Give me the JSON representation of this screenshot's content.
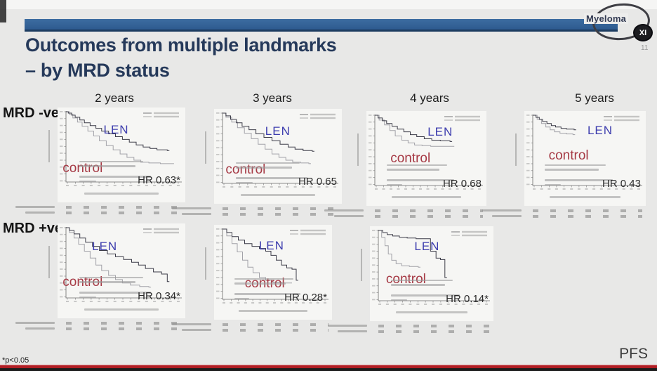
{
  "slide": {
    "title_line1": "Outcomes from multiple landmarks",
    "title_line2": "– by MRD status",
    "slide_number": "11",
    "footnote": "*p<0.05",
    "endpoint": "PFS",
    "logo": {
      "name": "Myeloma",
      "badge": "XI"
    }
  },
  "columns": [
    "2 years",
    "3 years",
    "4 years",
    "5 years"
  ],
  "row_labels": [
    "MRD -ve",
    "MRD +ve"
  ],
  "colors": {
    "header_bar": "#2d5a8f",
    "title_text": "#25395a",
    "bottom_line": "#b01e24",
    "len_label": "#3d3dae",
    "control_label": "#a63a45",
    "len_curve": "#3c3c48",
    "control_curve": "#a2a2a8",
    "background": "#e8e8e7"
  },
  "chart_data": [
    {
      "id": "mrd-neg-2y",
      "type": "line",
      "row": "MRD -ve",
      "landmark": "2 years",
      "hr_label": "HR 0.63*",
      "significant": true,
      "series_labels": {
        "len": "LEN",
        "control": "control"
      },
      "ylim": [
        0,
        100
      ],
      "grid": false,
      "legend_position": "top-right",
      "label_pos": {
        "len": [
          36,
          16
        ],
        "control": [
          4,
          56
        ]
      },
      "series": [
        {
          "name": "LEN",
          "points": [
            [
              0,
              100
            ],
            [
              2,
              98
            ],
            [
              5,
              95
            ],
            [
              8,
              92
            ],
            [
              12,
              88
            ],
            [
              16,
              84
            ],
            [
              21,
              80
            ],
            [
              26,
              76
            ],
            [
              31,
              72
            ],
            [
              37,
              68
            ],
            [
              43,
              64
            ],
            [
              49,
              60
            ],
            [
              55,
              56
            ],
            [
              61,
              52
            ],
            [
              67,
              49
            ],
            [
              73,
              47
            ],
            [
              79,
              45
            ],
            [
              88,
              44
            ]
          ]
        },
        {
          "name": "control",
          "points": [
            [
              0,
              100
            ],
            [
              3,
              96
            ],
            [
              6,
              91
            ],
            [
              10,
              85
            ],
            [
              14,
              79
            ],
            [
              19,
              72
            ],
            [
              24,
              65
            ],
            [
              29,
              58
            ],
            [
              35,
              51
            ],
            [
              41,
              45
            ],
            [
              47,
              39
            ],
            [
              53,
              34
            ],
            [
              59,
              30
            ],
            [
              65,
              27
            ],
            [
              72,
              26
            ],
            [
              82,
              25
            ],
            [
              92,
              25
            ]
          ]
        }
      ]
    },
    {
      "id": "mrd-neg-3y",
      "type": "line",
      "row": "MRD -ve",
      "landmark": "3 years",
      "hr_label": "HR 0.65",
      "significant": false,
      "series_labels": {
        "len": "LEN",
        "control": "control"
      },
      "ylim": [
        0,
        100
      ],
      "grid": false,
      "legend_position": "top-right",
      "label_pos": {
        "len": [
          40,
          16
        ],
        "control": [
          9,
          56
        ]
      },
      "series": [
        {
          "name": "LEN",
          "points": [
            [
              0,
              100
            ],
            [
              3,
              96
            ],
            [
              7,
              91
            ],
            [
              12,
              86
            ],
            [
              17,
              81
            ],
            [
              23,
              76
            ],
            [
              29,
              70
            ],
            [
              36,
              65
            ],
            [
              43,
              60
            ],
            [
              50,
              55
            ],
            [
              57,
              51
            ],
            [
              63,
              48
            ],
            [
              70,
              46
            ],
            [
              78,
              45
            ]
          ]
        },
        {
          "name": "control",
          "points": [
            [
              0,
              100
            ],
            [
              3,
              94
            ],
            [
              8,
              87
            ],
            [
              13,
              79
            ],
            [
              19,
              71
            ],
            [
              25,
              63
            ],
            [
              31,
              55
            ],
            [
              37,
              48
            ],
            [
              43,
              41
            ],
            [
              49,
              36
            ],
            [
              55,
              32
            ],
            [
              61,
              29
            ],
            [
              68,
              28
            ],
            [
              75,
              27
            ]
          ]
        }
      ]
    },
    {
      "id": "mrd-neg-4y",
      "type": "line",
      "row": "MRD -ve",
      "landmark": "4 years",
      "hr_label": "HR 0.68",
      "significant": false,
      "series_labels": {
        "len": "LEN",
        "control": "control"
      },
      "ylim": [
        0,
        100
      ],
      "grid": false,
      "legend_position": "top-right",
      "label_pos": {
        "len": [
          51,
          15
        ],
        "control": [
          20,
          42
        ]
      },
      "series": [
        {
          "name": "LEN",
          "points": [
            [
              0,
              100
            ],
            [
              3,
              96
            ],
            [
              7,
              92
            ],
            [
              11,
              88
            ],
            [
              16,
              84
            ],
            [
              21,
              80
            ],
            [
              27,
              76
            ],
            [
              33,
              72
            ],
            [
              39,
              69
            ],
            [
              46,
              66
            ],
            [
              53,
              64
            ],
            [
              61,
              63
            ],
            [
              70,
              62
            ]
          ]
        },
        {
          "name": "control",
          "points": [
            [
              0,
              100
            ],
            [
              4,
              93
            ],
            [
              9,
              86
            ],
            [
              14,
              78
            ],
            [
              19,
              70
            ],
            [
              25,
              64
            ],
            [
              31,
              60
            ],
            [
              37,
              57
            ],
            [
              44,
              56
            ],
            [
              52,
              55
            ],
            [
              62,
              55
            ],
            [
              72,
              55
            ]
          ]
        }
      ]
    },
    {
      "id": "mrd-neg-5y",
      "type": "line",
      "row": "MRD -ve",
      "landmark": "5 years",
      "hr_label": "HR 0.43",
      "significant": false,
      "series_labels": {
        "len": "LEN",
        "control": "control"
      },
      "ylim": [
        0,
        100
      ],
      "grid": false,
      "legend_position": "top-right",
      "label_pos": {
        "len": [
          52,
          13
        ],
        "control": [
          20,
          39
        ]
      },
      "series": [
        {
          "name": "LEN",
          "points": [
            [
              0,
              100
            ],
            [
              3,
              97
            ],
            [
              6,
              94
            ],
            [
              9,
              91
            ],
            [
              13,
              88
            ],
            [
              17,
              85
            ],
            [
              21,
              83
            ],
            [
              26,
              81
            ],
            [
              31,
              80
            ],
            [
              38,
              79
            ]
          ]
        },
        {
          "name": "control",
          "points": [
            [
              0,
              100
            ],
            [
              4,
              94
            ],
            [
              8,
              88
            ],
            [
              12,
              83
            ],
            [
              16,
              79
            ],
            [
              20,
              76
            ],
            [
              25,
              74
            ],
            [
              31,
              73
            ],
            [
              37,
              72
            ]
          ]
        }
      ]
    },
    {
      "id": "mrd-pos-2y",
      "type": "line",
      "row": "MRD +ve",
      "landmark": "2 years",
      "hr_label": "HR 0.34*",
      "significant": true,
      "series_labels": {
        "len": "LEN",
        "control": "control"
      },
      "ylim": [
        0,
        100
      ],
      "grid": false,
      "legend_position": "top-right",
      "label_pos": {
        "len": [
          27,
          17
        ],
        "control": [
          4,
          54
        ]
      },
      "series": [
        {
          "name": "LEN",
          "points": [
            [
              0,
              100
            ],
            [
              3,
              96
            ],
            [
              7,
              91
            ],
            [
              12,
              85
            ],
            [
              17,
              79
            ],
            [
              23,
              73
            ],
            [
              29,
              67
            ],
            [
              36,
              62
            ],
            [
              43,
              58
            ],
            [
              50,
              54
            ],
            [
              57,
              50
            ],
            [
              63,
              46
            ],
            [
              69,
              41
            ],
            [
              76,
              36
            ],
            [
              83,
              33
            ],
            [
              88,
              22
            ]
          ]
        },
        {
          "name": "control",
          "points": [
            [
              0,
              100
            ],
            [
              3,
              93
            ],
            [
              7,
              85
            ],
            [
              11,
              76
            ],
            [
              16,
              66
            ],
            [
              21,
              56
            ],
            [
              26,
              46
            ],
            [
              31,
              38
            ],
            [
              37,
              31
            ],
            [
              43,
              25
            ],
            [
              49,
              20
            ],
            [
              56,
              17
            ],
            [
              64,
              15
            ],
            [
              72,
              14
            ]
          ]
        }
      ]
    },
    {
      "id": "mrd-pos-3y",
      "type": "line",
      "row": "MRD +ve",
      "landmark": "3 years",
      "hr_label": "HR 0.28*",
      "significant": true,
      "series_labels": {
        "len": "LEN",
        "control": "control"
      },
      "ylim": [
        0,
        100
      ],
      "grid": false,
      "legend_position": "top-right",
      "label_pos": {
        "len": [
          38,
          15
        ],
        "control": [
          26,
          54
        ]
      },
      "series": [
        {
          "name": "LEN",
          "points": [
            [
              0,
              100
            ],
            [
              4,
              95
            ],
            [
              9,
              89
            ],
            [
              15,
              84
            ],
            [
              21,
              79
            ],
            [
              28,
              75
            ],
            [
              35,
              72
            ],
            [
              41,
              68
            ],
            [
              46,
              62
            ],
            [
              51,
              55
            ],
            [
              56,
              48
            ],
            [
              61,
              44
            ],
            [
              66,
              42
            ],
            [
              70,
              26
            ]
          ]
        },
        {
          "name": "control",
          "points": [
            [
              0,
              100
            ],
            [
              4,
              90
            ],
            [
              9,
              79
            ],
            [
              14,
              67
            ],
            [
              19,
              55
            ],
            [
              24,
              45
            ],
            [
              29,
              37
            ],
            [
              35,
              30
            ],
            [
              41,
              26
            ],
            [
              48,
              23
            ],
            [
              56,
              22
            ],
            [
              64,
              22
            ]
          ]
        }
      ]
    },
    {
      "id": "mrd-pos-4y",
      "type": "line",
      "row": "MRD +ve",
      "landmark": "4 years",
      "hr_label": "HR 0.14*",
      "significant": true,
      "series_labels": {
        "len": "LEN",
        "control": "control"
      },
      "ylim": [
        0,
        100
      ],
      "grid": false,
      "legend_position": "top-right",
      "label_pos": {
        "len": [
          36,
          14
        ],
        "control": [
          13,
          48
        ]
      },
      "series": [
        {
          "name": "LEN",
          "points": [
            [
              0,
              100
            ],
            [
              4,
              97
            ],
            [
              8,
              94
            ],
            [
              13,
              92
            ],
            [
              19,
              90
            ],
            [
              26,
              89
            ],
            [
              34,
              88
            ],
            [
              42,
              88
            ],
            [
              47,
              70
            ],
            [
              52,
              60
            ],
            [
              56,
              58
            ],
            [
              60,
              32
            ]
          ]
        },
        {
          "name": "control",
          "points": [
            [
              0,
              100
            ],
            [
              3,
              90
            ],
            [
              6,
              78
            ],
            [
              9,
              66
            ],
            [
              12,
              57
            ],
            [
              16,
              52
            ],
            [
              21,
              49
            ],
            [
              28,
              48
            ],
            [
              36,
              47
            ]
          ]
        }
      ]
    }
  ]
}
